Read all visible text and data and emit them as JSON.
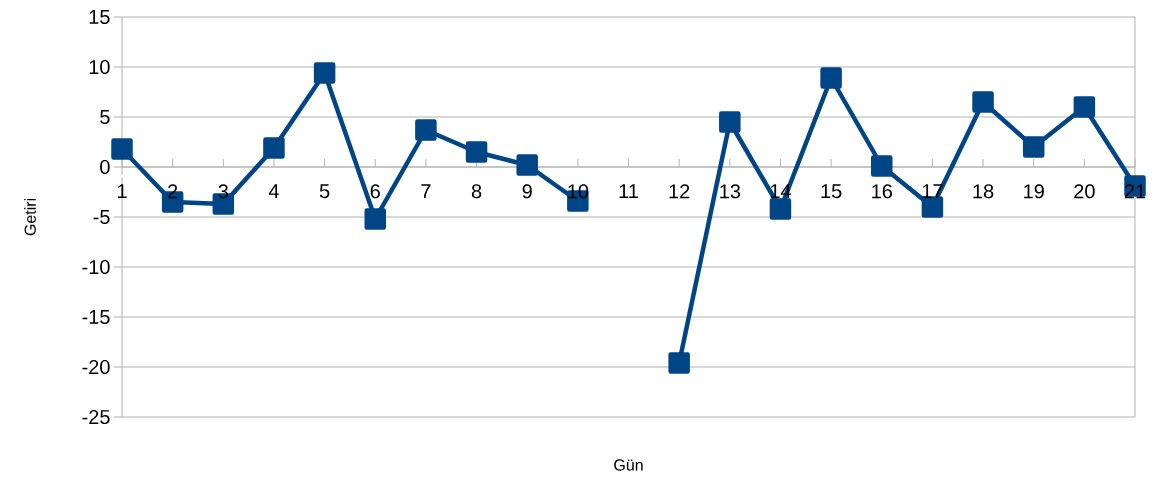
{
  "chart_data": {
    "type": "line",
    "xlabel": "Gün",
    "ylabel": "Getiri",
    "categories": [
      "1",
      "2",
      "3",
      "4",
      "5",
      "6",
      "7",
      "8",
      "9",
      "10",
      "11",
      "12",
      "13",
      "14",
      "15",
      "16",
      "17",
      "18",
      "19",
      "20",
      "21"
    ],
    "series": [
      {
        "color": "#004586",
        "values": [
          1.8,
          -3.5,
          -3.7,
          1.9,
          9.4,
          -5.2,
          3.7,
          1.5,
          0.2,
          -3.4,
          null,
          -19.6,
          4.5,
          -4.2,
          8.9,
          0.1,
          -4.0,
          6.5,
          2.0,
          6.0,
          -1.9
        ]
      }
    ],
    "ylim": [
      -25,
      15
    ],
    "yticks": [
      -25,
      -20,
      -15,
      -10,
      -5,
      0,
      5,
      10,
      15
    ],
    "grid": "y",
    "marker": "square",
    "line_style": "solid"
  }
}
